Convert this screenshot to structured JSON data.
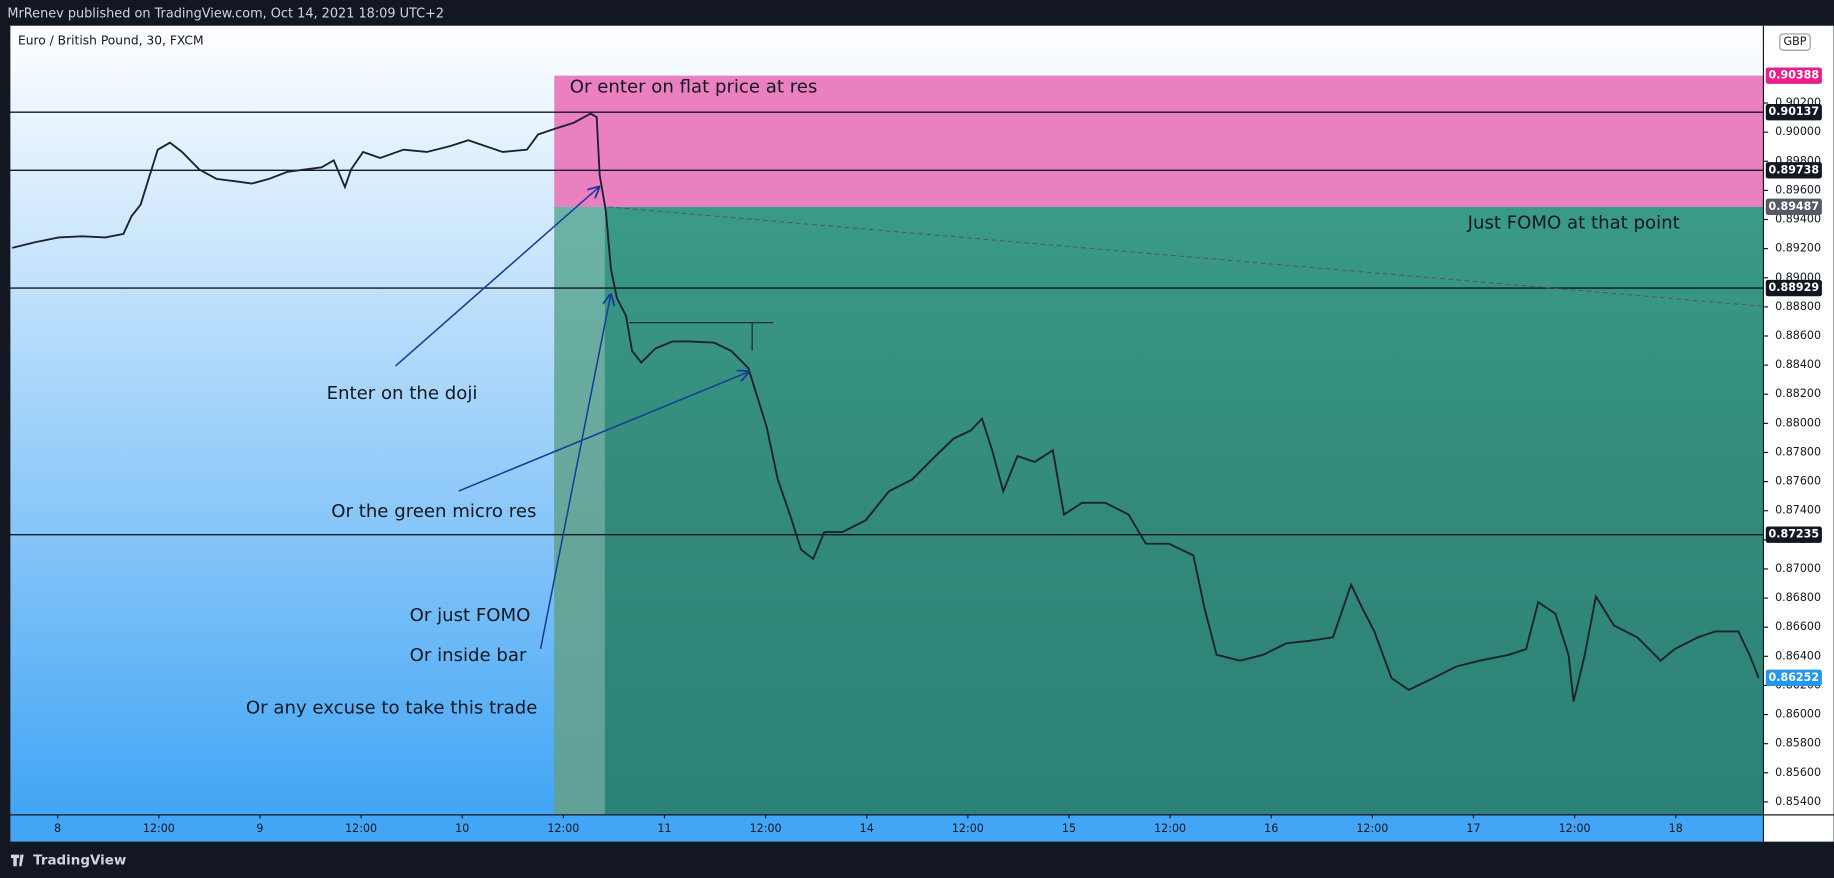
{
  "header": {
    "published": "MrRenev published on TradingView.com, Oct 14, 2021 18:09 UTC+2",
    "brand": "TradingView"
  },
  "chart_data": {
    "type": "line",
    "symbol": "Euro / British Pound, 30, FXCM",
    "currency": "GBP",
    "color": "#1e222d",
    "xlim": [
      -0.474,
      16.867
    ],
    "ylim": [
      0.85311,
      0.90731
    ],
    "xticks": [
      {
        "value": 0,
        "label": "8"
      },
      {
        "value": 1,
        "label": "12:00"
      },
      {
        "value": 2,
        "label": "9"
      },
      {
        "value": 3,
        "label": "12:00"
      },
      {
        "value": 4,
        "label": "10"
      },
      {
        "value": 5,
        "label": "12:00"
      },
      {
        "value": 6,
        "label": "11"
      },
      {
        "value": 7,
        "label": "12:00"
      },
      {
        "value": 8,
        "label": "14"
      },
      {
        "value": 9,
        "label": "12:00"
      },
      {
        "value": 10,
        "label": "15"
      },
      {
        "value": 11,
        "label": "12:00"
      },
      {
        "value": 12,
        "label": "16"
      },
      {
        "value": 13,
        "label": "12:00"
      },
      {
        "value": 14,
        "label": "17"
      },
      {
        "value": 15,
        "label": "12:00"
      },
      {
        "value": 16,
        "label": "18"
      }
    ],
    "yticks": [
      {
        "value": 0.854,
        "label": "0.85400"
      },
      {
        "value": 0.856,
        "label": "0.85600"
      },
      {
        "value": 0.858,
        "label": "0.85800"
      },
      {
        "value": 0.86,
        "label": "0.86000"
      },
      {
        "value": 0.862,
        "label": "0.86200"
      },
      {
        "value": 0.864,
        "label": "0.86400"
      },
      {
        "value": 0.866,
        "label": "0.86600"
      },
      {
        "value": 0.868,
        "label": "0.86800"
      },
      {
        "value": 0.87,
        "label": "0.87000"
      },
      {
        "value": 0.872,
        "label": "0.87200"
      },
      {
        "value": 0.874,
        "label": "0.87400"
      },
      {
        "value": 0.876,
        "label": "0.87600"
      },
      {
        "value": 0.878,
        "label": "0.87800"
      },
      {
        "value": 0.88,
        "label": "0.88000"
      },
      {
        "value": 0.882,
        "label": "0.88200"
      },
      {
        "value": 0.884,
        "label": "0.88400"
      },
      {
        "value": 0.886,
        "label": "0.88600"
      },
      {
        "value": 0.888,
        "label": "0.88800"
      },
      {
        "value": 0.89,
        "label": "0.89000"
      },
      {
        "value": 0.892,
        "label": "0.89200"
      },
      {
        "value": 0.894,
        "label": "0.89400"
      },
      {
        "value": 0.896,
        "label": "0.89600"
      },
      {
        "value": 0.898,
        "label": "0.89800"
      },
      {
        "value": 0.9,
        "label": "0.90000"
      },
      {
        "value": 0.902,
        "label": "0.90200"
      }
    ],
    "price_lines": [
      0.90137,
      0.89738,
      0.88929,
      0.87235
    ],
    "position": {
      "start_x": 4.91,
      "entry_x": 5.41,
      "stop": 0.90388,
      "entry": 0.89487,
      "stop_color": "#ea80bf",
      "target_color": "#3a9a88"
    },
    "last_price": 0.86252,
    "x": [
      -0.45,
      -0.22,
      0.01,
      0.24,
      0.47,
      0.65,
      0.73,
      0.82,
      0.91,
      0.99,
      1.11,
      1.23,
      1.4,
      1.57,
      1.75,
      1.92,
      2.09,
      2.27,
      2.44,
      2.61,
      2.73,
      2.84,
      2.9,
      3.02,
      3.19,
      3.42,
      3.65,
      3.88,
      4.06,
      4.23,
      4.4,
      4.64,
      4.75,
      4.92,
      5.1,
      5.27,
      5.33,
      5.36,
      5.42,
      5.47,
      5.53,
      5.62,
      5.68,
      5.77,
      5.91,
      6.08,
      6.25,
      6.49,
      6.66,
      6.83,
      6.92,
      7.01,
      7.12,
      7.24,
      7.35,
      7.47,
      7.58,
      7.76,
      7.99,
      8.22,
      8.45,
      8.68,
      8.86,
      9.03,
      9.14,
      9.24,
      9.35,
      9.49,
      9.66,
      9.84,
      9.95,
      10.13,
      10.36,
      10.59,
      10.76,
      10.99,
      11.23,
      11.34,
      11.46,
      11.69,
      11.92,
      12.15,
      12.38,
      12.61,
      12.79,
      12.9,
      13.02,
      13.19,
      13.36,
      13.6,
      13.83,
      14.06,
      14.35,
      14.52,
      14.64,
      14.81,
      14.94,
      14.99,
      15.1,
      15.21,
      15.39,
      15.62,
      15.85,
      15.99,
      16.22,
      16.39,
      16.62,
      16.73,
      16.82
    ],
    "values": [
      0.89205,
      0.89245,
      0.89277,
      0.89285,
      0.89277,
      0.89301,
      0.89422,
      0.89502,
      0.89703,
      0.8988,
      0.89928,
      0.89864,
      0.89743,
      0.89679,
      0.89663,
      0.89647,
      0.89679,
      0.89727,
      0.89743,
      0.89759,
      0.89807,
      0.89623,
      0.89743,
      0.89864,
      0.89823,
      0.8988,
      0.89864,
      0.89904,
      0.89944,
      0.89904,
      0.89864,
      0.8988,
      0.89984,
      0.90024,
      0.90064,
      0.90128,
      0.90104,
      0.89703,
      0.89462,
      0.8906,
      0.8886,
      0.88739,
      0.88498,
      0.88418,
      0.88514,
      0.88562,
      0.88562,
      0.88554,
      0.88498,
      0.88378,
      0.88177,
      0.87976,
      0.87615,
      0.87374,
      0.87133,
      0.87069,
      0.87253,
      0.87253,
      0.87334,
      0.87534,
      0.87615,
      0.87775,
      0.87896,
      0.87952,
      0.88032,
      0.87815,
      0.87534,
      0.87775,
      0.87735,
      0.87815,
      0.87374,
      0.87454,
      0.87454,
      0.87374,
      0.87173,
      0.87173,
      0.87093,
      0.86731,
      0.8641,
      0.8637,
      0.8641,
      0.8649,
      0.86507,
      0.86531,
      0.86892,
      0.86731,
      0.86571,
      0.8625,
      0.86169,
      0.8625,
      0.8633,
      0.8637,
      0.8641,
      0.8645,
      0.86772,
      0.86691,
      0.8641,
      0.86089,
      0.8641,
      0.86812,
      0.86611,
      0.86531,
      0.8637,
      0.8645,
      0.86531,
      0.86571,
      0.86571,
      0.8641,
      0.86252
    ],
    "annotations": [
      "Or enter on flat price at res",
      "Just FOMO at that point",
      "Enter on the doji",
      "Or the green micro res",
      "Or just FOMO",
      "Or inside bar",
      "Or any excuse to take this trade"
    ]
  }
}
